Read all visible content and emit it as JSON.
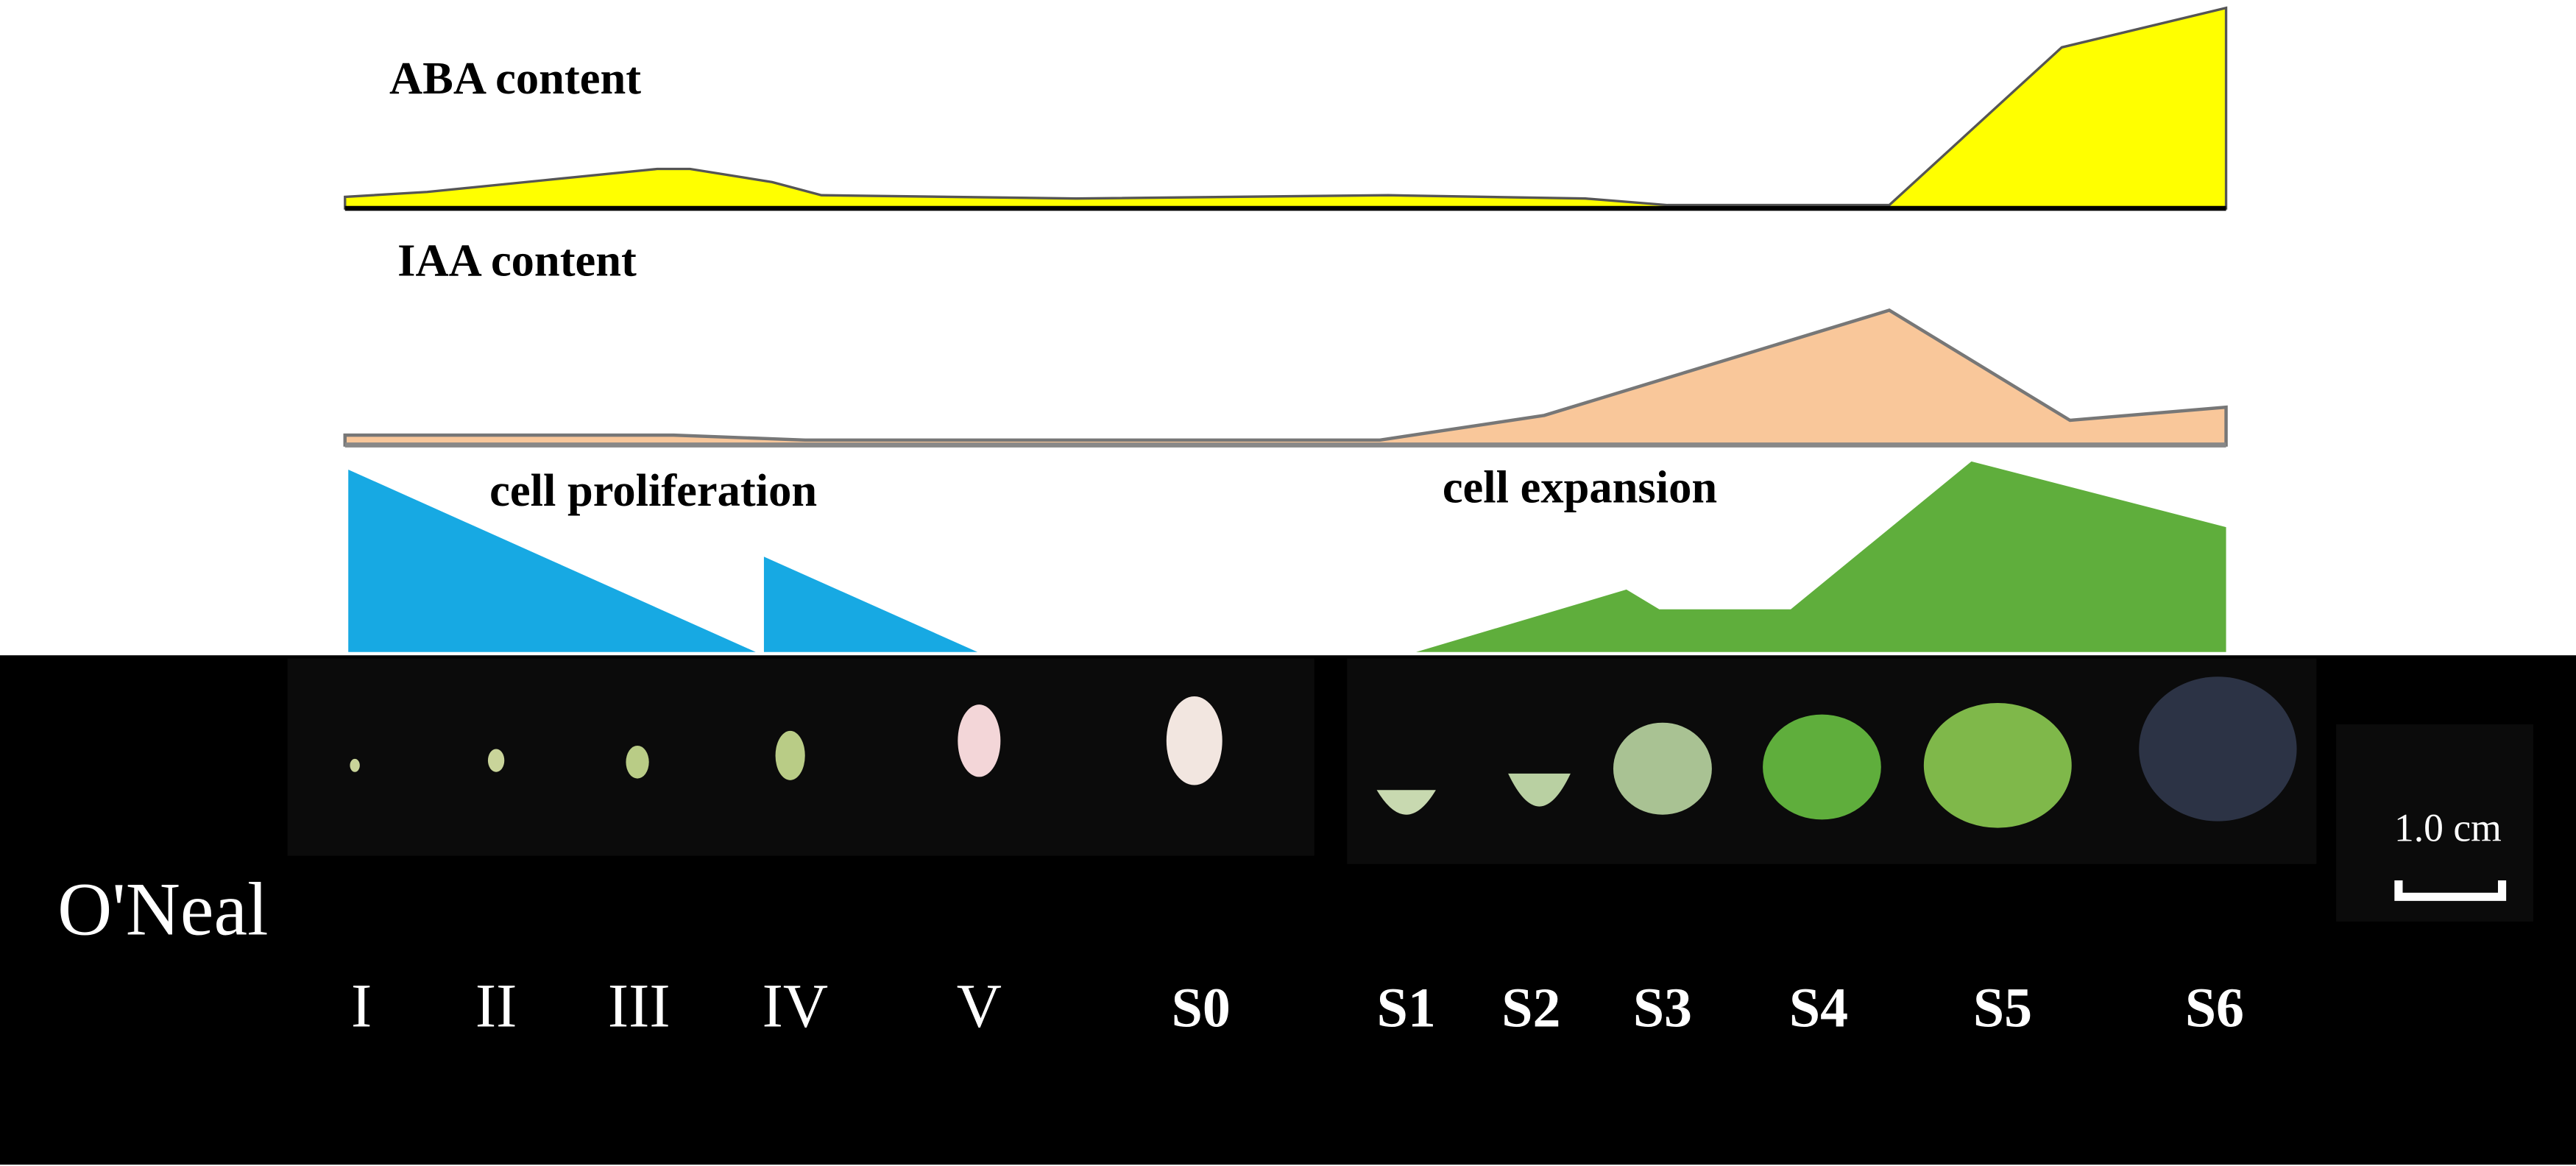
{
  "labels": {
    "aba": "ABA content",
    "iaa": "IAA content",
    "proliferation": "cell proliferation",
    "expansion": "cell expansion"
  },
  "cultivar": "O'Neal",
  "stages": [
    "I",
    "II",
    "III",
    "IV",
    "V",
    "S0",
    "S1",
    "S2",
    "S3",
    "S4",
    "S5",
    "S6"
  ],
  "scale_bar": "1.0 cm"
}
